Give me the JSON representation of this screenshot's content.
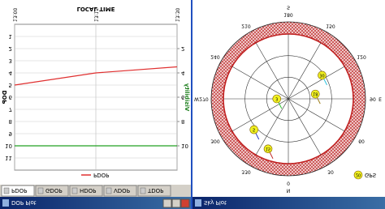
{
  "left_window": {
    "title": "DOP Plot",
    "tabs": [
      "PDOP",
      "GDOP",
      "HDOP",
      "VDOP",
      "TDOP"
    ],
    "chart": {
      "type": "line",
      "title": "LOCAL TIME",
      "y_label": "DOP",
      "y2_label": "Visibility",
      "categories": [
        "13:00",
        "13:15",
        "13:30"
      ],
      "series": [
        {
          "name": "PDOP",
          "color": "#e03030",
          "values": [
            5.0,
            4.0,
            3.5
          ]
        },
        {
          "name": "Visibility",
          "color": "#20a020",
          "axis": "y2",
          "values": [
            10,
            10,
            10
          ]
        }
      ],
      "ylim": [
        0,
        12
      ],
      "yticks": [
        1,
        2,
        3,
        4,
        5,
        6,
        7,
        8,
        9,
        10,
        11
      ],
      "y2lim": [
        0,
        12
      ],
      "y2ticks": [
        2,
        4,
        6,
        8,
        10
      ],
      "grid": true
    }
  },
  "right_window": {
    "title": "Sky Plot",
    "sky": {
      "azimuth_ticks": [
        0,
        30,
        60,
        90,
        120,
        150,
        180,
        210,
        240,
        270,
        300,
        330
      ],
      "compass": [
        "N",
        "E",
        "S",
        "W"
      ],
      "satellites": [
        {
          "id": "15",
          "azimuth": 338,
          "elevation": 15
        },
        {
          "id": "5",
          "azimuth": 312,
          "elevation": 26
        },
        {
          "id": "3",
          "azimuth": 270,
          "elevation": 74
        },
        {
          "id": "18",
          "azimuth": 100,
          "elevation": 52
        },
        {
          "id": "30",
          "azimuth": 125,
          "elevation": 33
        }
      ],
      "legend": {
        "symbol": "20",
        "label": "GPS"
      }
    }
  }
}
